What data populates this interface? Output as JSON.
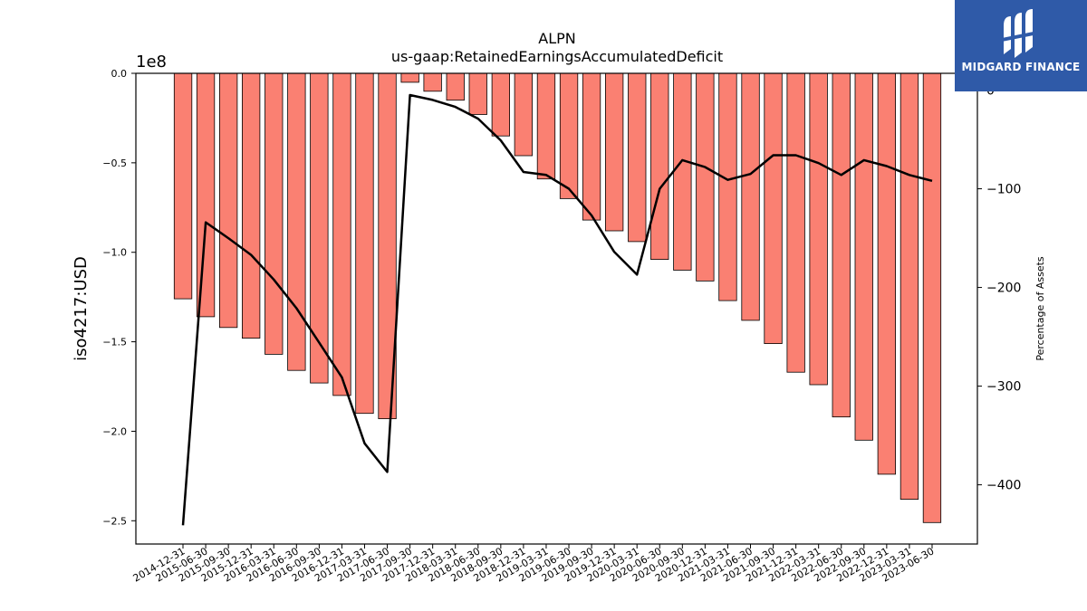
{
  "chart_data": {
    "type": "bar",
    "title": "ALPN",
    "subtitle": "us-gaap:RetainedEarningsAccumulatedDeficit",
    "ylabel": "iso4217:USD",
    "y_offset_label": "1e8",
    "y2label": "Percentage of Assets",
    "categories": [
      "2014-12-31",
      "2015-06-30",
      "2015-09-30",
      "2015-12-31",
      "2016-03-31",
      "2016-06-30",
      "2016-09-30",
      "2016-12-31",
      "2017-03-31",
      "2017-06-30",
      "2017-09-30",
      "2017-12-31",
      "2018-03-31",
      "2018-06-30",
      "2018-09-30",
      "2018-12-31",
      "2019-03-31",
      "2019-06-30",
      "2019-09-30",
      "2019-12-31",
      "2020-03-31",
      "2020-06-30",
      "2020-09-30",
      "2020-12-31",
      "2021-03-31",
      "2021-06-30",
      "2021-09-30",
      "2021-12-31",
      "2022-03-31",
      "2022-06-30",
      "2022-09-30",
      "2022-12-31",
      "2023-03-31",
      "2023-06-30"
    ],
    "series": [
      {
        "type": "bar",
        "axis": "left",
        "color": "#fa8072",
        "values": [
          -126000000,
          -136000000,
          -142000000,
          -148000000,
          -157000000,
          -166000000,
          -173000000,
          -180000000,
          -190000000,
          -193000000,
          -5000000,
          -10000000,
          -15000000,
          -23000000,
          -35000000,
          -46000000,
          -59000000,
          -70000000,
          -82000000,
          -88000000,
          -94000000,
          -104000000,
          -110000000,
          -116000000,
          -127000000,
          -138000000,
          -151000000,
          -167000000,
          -174000000,
          -192000000,
          -205000000,
          -224000000,
          -238000000,
          -251000000
        ]
      },
      {
        "type": "line",
        "axis": "right",
        "color": "#000000",
        "values": [
          -441,
          -134,
          -150,
          -167,
          -192,
          -221,
          -256,
          -291,
          -358,
          -387,
          -5,
          -10,
          -17,
          -29,
          -51,
          -83,
          -86,
          -100,
          -127,
          -164,
          -187,
          -100,
          -71,
          -78,
          -91,
          -85,
          -66,
          -66,
          -74,
          -86,
          -71,
          -77,
          -86,
          -92
        ]
      }
    ],
    "ylim": [
      -263000000.0,
      0
    ],
    "y_ticks": [
      0,
      -0.5,
      -1.0,
      -1.5,
      -2.0,
      -2.5
    ],
    "y_tick_labels": [
      "0.0",
      "−0.5",
      "−1.0",
      "−1.5",
      "−2.0",
      "−2.5"
    ],
    "y2lim": [
      -460,
      17
    ],
    "y2_ticks": [
      0,
      -100,
      -200,
      -300,
      -400
    ],
    "y2_tick_labels": [
      "0",
      "−100",
      "−200",
      "−300",
      "−400"
    ],
    "grid": false
  },
  "logo": {
    "text": "MIDGARD FINANCE",
    "background": "#2f5aa8"
  }
}
